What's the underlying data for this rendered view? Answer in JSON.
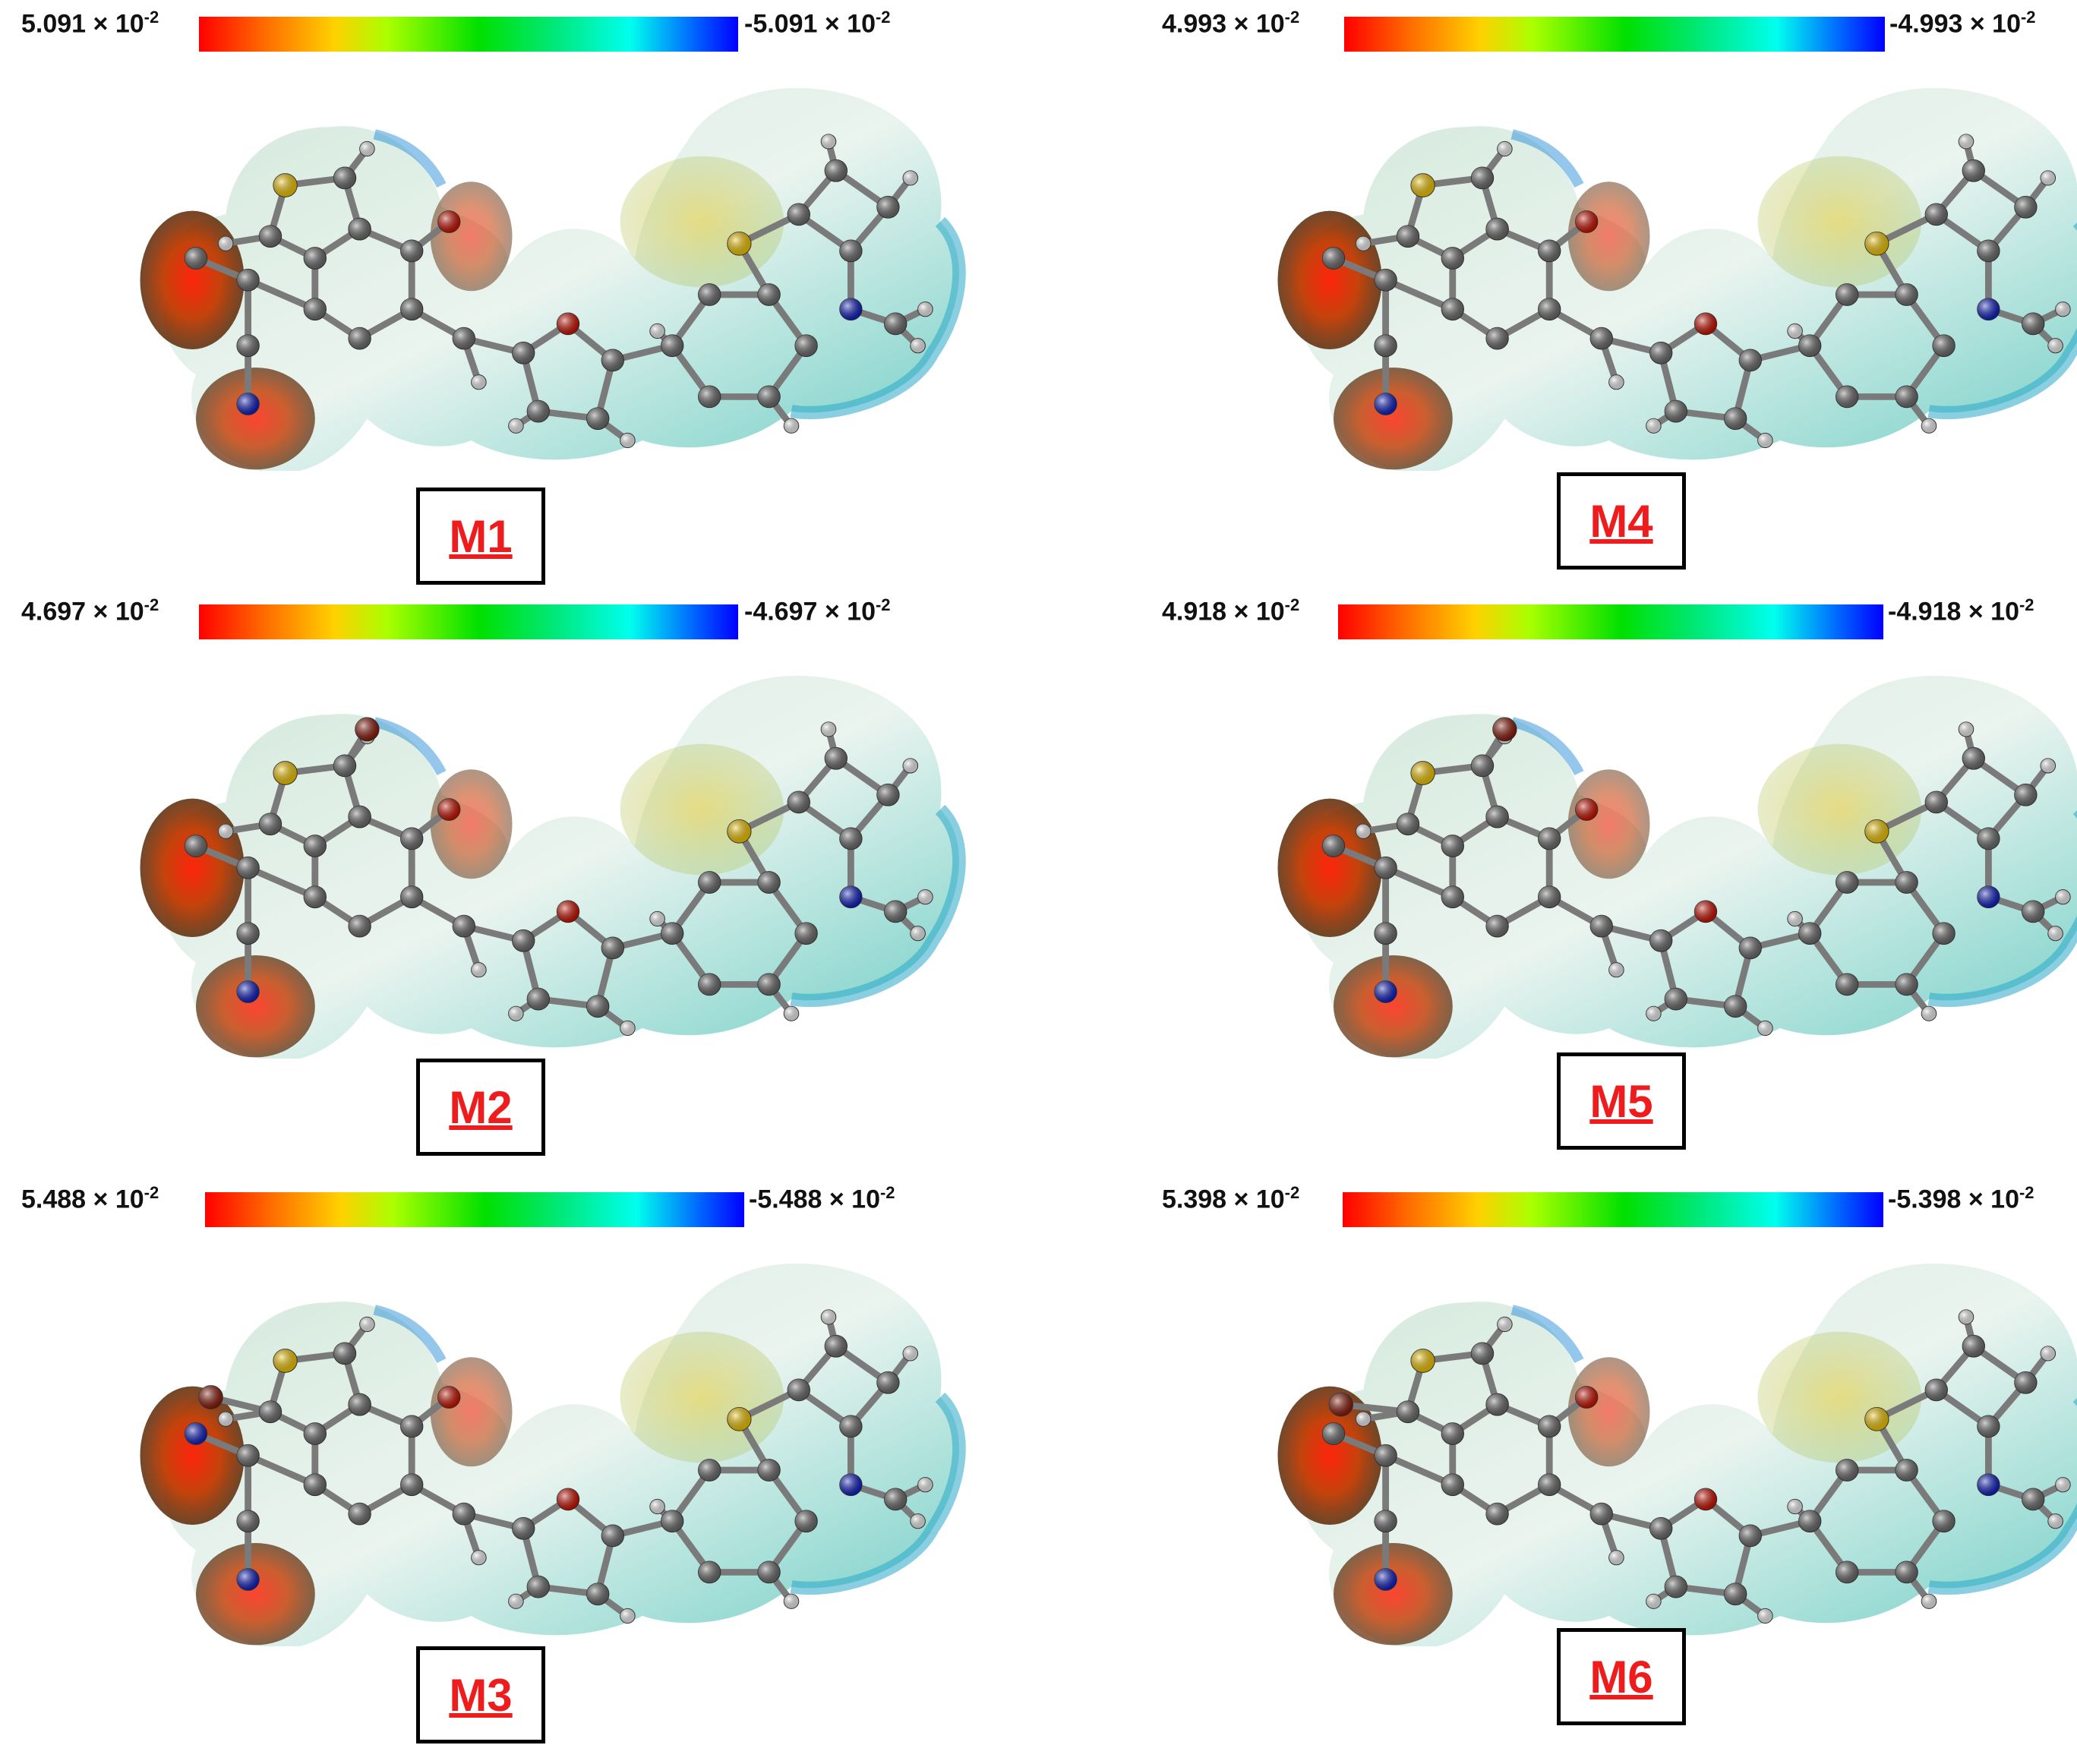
{
  "panels": [
    {
      "id": "M1",
      "label": "M1",
      "scale_min": "5.091 × 10",
      "scale_max": "-5.091 × 10",
      "exponent": "-2",
      "variant": 1
    },
    {
      "id": "M2",
      "label": "M2",
      "scale_min": "4.697 × 10",
      "scale_max": "-4.697 × 10",
      "exponent": "-2",
      "variant": 2
    },
    {
      "id": "M3",
      "label": "M3",
      "scale_min": "5.488 × 10",
      "scale_max": "-5.488 × 10",
      "exponent": "-2",
      "variant": 3
    },
    {
      "id": "M4",
      "label": "M4",
      "scale_min": "4.993 × 10",
      "scale_max": "-4.993 × 10",
      "exponent": "-2",
      "variant": 4
    },
    {
      "id": "M5",
      "label": "M5",
      "scale_min": "4.918 × 10",
      "scale_max": "-4.918 × 10",
      "exponent": "-2",
      "variant": 5
    },
    {
      "id": "M6",
      "label": "M6",
      "scale_min": "5.398 × 10",
      "scale_max": "-5.398 × 10",
      "exponent": "-2",
      "variant": 6
    }
  ],
  "colors": {
    "positive": "#ff0000",
    "neutral": "#00e000",
    "negative": "#0000ff",
    "label_text": "#ee1c1c",
    "carbon": "#6b6b6b",
    "hydrogen": "#eeeeee",
    "sulfur": "#f2c500",
    "oxygen": "#cc1100",
    "nitrogen": "#1020c0",
    "bromine": "#8b1a0a"
  }
}
